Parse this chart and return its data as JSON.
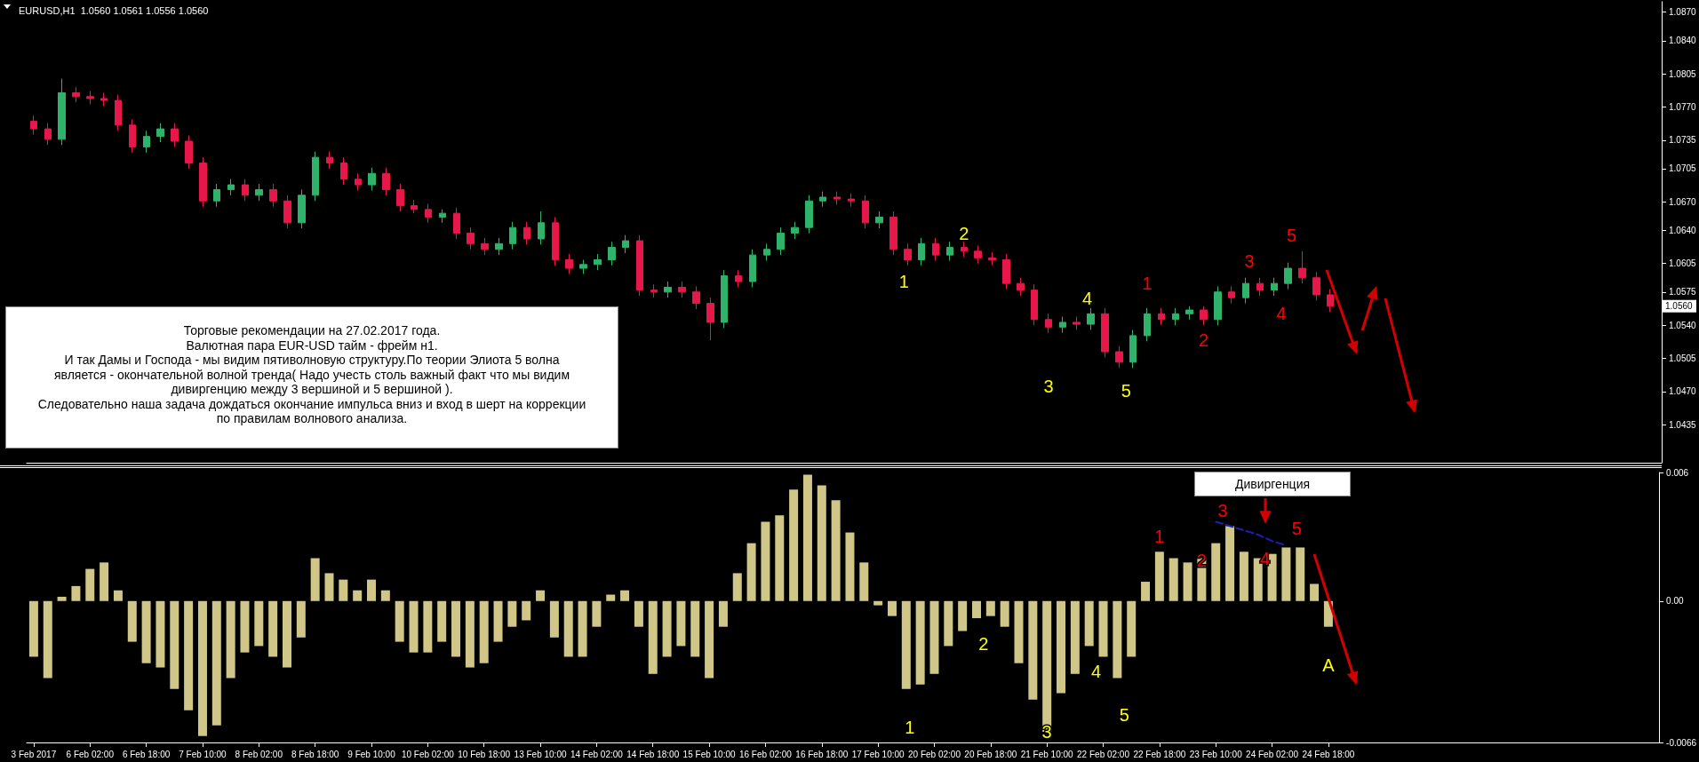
{
  "chart_data": [
    {
      "type": "candlestick",
      "title": "EURUSD,H1  1.0560 1.0561 1.0556 1.0560",
      "categories": [
        null,
        null,
        null,
        null,
        null,
        null,
        null,
        null,
        null,
        null,
        null,
        null,
        null,
        null,
        null,
        null,
        null,
        null,
        null,
        null,
        null,
        null,
        null,
        null,
        null,
        null,
        null,
        null,
        null,
        null,
        null,
        null,
        null,
        null,
        null,
        null,
        null,
        null,
        null,
        null,
        null,
        null,
        null,
        null,
        null,
        null,
        null,
        null,
        null,
        null,
        null,
        null,
        null,
        null,
        null,
        null,
        null,
        null,
        null,
        null,
        null,
        null,
        null,
        null,
        null,
        null,
        null,
        null,
        null,
        null,
        null,
        null,
        null,
        null,
        null,
        null,
        null,
        null,
        null,
        null,
        null,
        null,
        null,
        null,
        null,
        null,
        null,
        null,
        null,
        null,
        null,
        null,
        null,
        null,
        null,
        null,
        null,
        null,
        null,
        null,
        null,
        null,
        null,
        null,
        null,
        null,
        null,
        null,
        null,
        null,
        null,
        null,
        null,
        null,
        null,
        null
      ],
      "ohlc": [
        [
          1.0755,
          1.0761,
          1.0741,
          1.0747
        ],
        [
          1.0747,
          1.0753,
          1.073,
          1.0736
        ],
        [
          1.0736,
          1.08,
          1.073,
          1.0785
        ],
        [
          1.0785,
          1.0791,
          1.0775,
          1.0781
        ],
        [
          1.0781,
          1.0787,
          1.0773,
          1.0779
        ],
        [
          1.0779,
          1.0785,
          1.0771,
          1.0777
        ],
        [
          1.0777,
          1.0783,
          1.0745,
          1.0751
        ],
        [
          1.0751,
          1.0757,
          1.0722,
          1.0728
        ],
        [
          1.0728,
          1.0745,
          1.0722,
          1.0739
        ],
        [
          1.0739,
          1.0753,
          1.0733,
          1.0747
        ],
        [
          1.0747,
          1.0753,
          1.0728,
          1.0734
        ],
        [
          1.0734,
          1.074,
          1.0705,
          1.0711
        ],
        [
          1.0711,
          1.0717,
          1.0665,
          1.0671
        ],
        [
          1.0671,
          1.0689,
          1.0665,
          1.0683
        ],
        [
          1.0683,
          1.0694,
          1.0677,
          1.0688
        ],
        [
          1.0688,
          1.0694,
          1.0671,
          1.0677
        ],
        [
          1.0677,
          1.0689,
          1.0671,
          1.0683
        ],
        [
          1.0683,
          1.0689,
          1.0665,
          1.0671
        ],
        [
          1.0671,
          1.0677,
          1.0642,
          1.0648
        ],
        [
          1.0648,
          1.0683,
          1.0642,
          1.0677
        ],
        [
          1.0677,
          1.0723,
          1.0671,
          1.0717
        ],
        [
          1.0717,
          1.0723,
          1.0705,
          1.0711
        ],
        [
          1.0711,
          1.0717,
          1.0688,
          1.0694
        ],
        [
          1.0694,
          1.07,
          1.0682,
          1.0688
        ],
        [
          1.0688,
          1.0706,
          1.0682,
          1.07
        ],
        [
          1.07,
          1.0706,
          1.0677,
          1.0683
        ],
        [
          1.0683,
          1.0689,
          1.066,
          1.0666
        ],
        [
          1.0666,
          1.0672,
          1.0658,
          1.0662
        ],
        [
          1.0662,
          1.0668,
          1.0648,
          1.0654
        ],
        [
          1.0654,
          1.0662,
          1.0648,
          1.0658
        ],
        [
          1.0658,
          1.0664,
          1.0631,
          1.0637
        ],
        [
          1.0637,
          1.0643,
          1.062,
          1.0626
        ],
        [
          1.0626,
          1.0632,
          1.0614,
          1.062
        ],
        [
          1.062,
          1.0632,
          1.0614,
          1.0626
        ],
        [
          1.0626,
          1.0649,
          1.062,
          1.0643
        ],
        [
          1.0643,
          1.0649,
          1.0625,
          1.0631
        ],
        [
          1.0631,
          1.066,
          1.0625,
          1.0648
        ],
        [
          1.0648,
          1.0654,
          1.0603,
          1.0609
        ],
        [
          1.0609,
          1.0615,
          1.0594,
          1.06
        ],
        [
          1.06,
          1.0609,
          1.0594,
          1.0604
        ],
        [
          1.0604,
          1.0615,
          1.0598,
          1.0609
        ],
        [
          1.0609,
          1.0628,
          1.0603,
          1.0622
        ],
        [
          1.0622,
          1.0635,
          1.0616,
          1.0629
        ],
        [
          1.0629,
          1.0635,
          1.0571,
          1.0577
        ],
        [
          1.0577,
          1.0583,
          1.0569,
          1.0575
        ],
        [
          1.0575,
          1.0586,
          1.0569,
          1.058
        ],
        [
          1.058,
          1.0586,
          1.0569,
          1.0575
        ],
        [
          1.0575,
          1.0581,
          1.0557,
          1.0563
        ],
        [
          1.0563,
          1.0569,
          1.0524,
          1.0543
        ],
        [
          1.0543,
          1.0598,
          1.0537,
          1.0592
        ],
        [
          1.0592,
          1.0598,
          1.058,
          1.0586
        ],
        [
          1.0586,
          1.062,
          1.058,
          1.0614
        ],
        [
          1.0614,
          1.0626,
          1.0608,
          1.062
        ],
        [
          1.062,
          1.0643,
          1.0614,
          1.0637
        ],
        [
          1.0637,
          1.0649,
          1.0631,
          1.0643
        ],
        [
          1.0643,
          1.0677,
          1.0637,
          1.0671
        ],
        [
          1.0671,
          1.0681,
          1.0665,
          1.0675
        ],
        [
          1.0675,
          1.0681,
          1.0667,
          1.0673
        ],
        [
          1.0673,
          1.0679,
          1.0665,
          1.0671
        ],
        [
          1.0671,
          1.0677,
          1.0642,
          1.0648
        ],
        [
          1.0648,
          1.066,
          1.0642,
          1.0654
        ],
        [
          1.0654,
          1.066,
          1.0614,
          1.062
        ],
        [
          1.062,
          1.0626,
          1.0603,
          1.0609
        ],
        [
          1.0609,
          1.0632,
          1.0603,
          1.0626
        ],
        [
          1.0626,
          1.0632,
          1.0608,
          1.0614
        ],
        [
          1.0614,
          1.0628,
          1.0608,
          1.0622
        ],
        [
          1.0622,
          1.0628,
          1.0612,
          1.0618
        ],
        [
          1.0618,
          1.0624,
          1.0605,
          1.0611
        ],
        [
          1.0611,
          1.0617,
          1.0603,
          1.0609
        ],
        [
          1.0609,
          1.0615,
          1.0578,
          1.0584
        ],
        [
          1.0584,
          1.059,
          1.0571,
          1.0577
        ],
        [
          1.0577,
          1.0583,
          1.054,
          1.0546
        ],
        [
          1.0546,
          1.0552,
          1.0532,
          1.0538
        ],
        [
          1.0538,
          1.0549,
          1.0532,
          1.0543
        ],
        [
          1.0543,
          1.0549,
          1.0535,
          1.0541
        ],
        [
          1.0541,
          1.0558,
          1.0535,
          1.0552
        ],
        [
          1.0552,
          1.0558,
          1.0506,
          1.0512
        ],
        [
          1.0512,
          1.0518,
          1.0495,
          1.0501
        ],
        [
          1.0501,
          1.0535,
          1.0495,
          1.0529
        ],
        [
          1.0529,
          1.0558,
          1.0523,
          1.0552
        ],
        [
          1.0552,
          1.0558,
          1.054,
          1.0546
        ],
        [
          1.0546,
          1.0558,
          1.054,
          1.0552
        ],
        [
          1.0552,
          1.056,
          1.0546,
          1.0556
        ],
        [
          1.0556,
          1.056,
          1.054,
          1.0546
        ],
        [
          1.0546,
          1.0581,
          1.054,
          1.0575
        ],
        [
          1.0575,
          1.0581,
          1.0563,
          1.0569
        ],
        [
          1.0569,
          1.059,
          1.0563,
          1.0584
        ],
        [
          1.0584,
          1.059,
          1.0571,
          1.0577
        ],
        [
          1.0577,
          1.059,
          1.0571,
          1.0584
        ],
        [
          1.0584,
          1.0606,
          1.0578,
          1.06
        ],
        [
          1.06,
          1.0618,
          1.0584,
          1.059
        ],
        [
          1.059,
          1.0596,
          1.0566,
          1.0572
        ],
        [
          1.0572,
          1.0578,
          1.0554,
          1.056
        ],
        null,
        null,
        null,
        null,
        null,
        null,
        null,
        null,
        null,
        null,
        null,
        null,
        null,
        null,
        null,
        null,
        null,
        null,
        null,
        null,
        null,
        null,
        null
      ],
      "ylim": [
        1.0395,
        1.0881
      ],
      "yticks": [
        {
          "value": 1.087,
          "label": "1.0870"
        },
        {
          "value": 1.084,
          "label": "1.0840"
        },
        {
          "value": 1.0805,
          "label": "1.0805"
        },
        {
          "value": 1.077,
          "label": "1.0770"
        },
        {
          "value": 1.0735,
          "label": "1.0735"
        },
        {
          "value": 1.0705,
          "label": "1.0705"
        },
        {
          "value": 1.067,
          "label": "1.0670"
        },
        {
          "value": 1.064,
          "label": "1.0640"
        },
        {
          "value": 1.0605,
          "label": "1.0605"
        },
        {
          "value": 1.0575,
          "label": "1.0575"
        },
        {
          "value": 1.054,
          "label": "1.0540"
        },
        {
          "value": 1.0505,
          "label": "1.0505"
        },
        {
          "value": 1.047,
          "label": "1.0470"
        },
        {
          "value": 1.0435,
          "label": "1.0435"
        }
      ],
      "tick_labels": "y",
      "annotations": [
        "Торговые рекомендации на 27.02.2017 года.\nВалютная пара  EUR-USD   тайм - фрейм н1.\nИ так Дамы и Господа - мы видим пятиволновую структуру.По теории Элиота 5 волна\nявляется - окончательной волной тренда( Надо учесть столь важный факт что мы видим\nдивиргенцию между 3 вершиной и 5 вершиной ).\nСледовательно наша задача дождаться окончание импульса вниз и  вход в шерт на коррекции\nпо правилам волнового анализа.",
        {
          "text": "1.0560",
          "y": 1.056
        },
        "1",
        "2",
        "3",
        "4",
        "5",
        "1",
        "2",
        "3",
        "4",
        "5"
      ]
    },
    {
      "type": "bar",
      "categories": [
        "3 Feb 2017",
        null,
        null,
        null,
        "6 Feb 02:00",
        null,
        null,
        null,
        "6 Feb 18:00",
        null,
        null,
        null,
        "7 Feb 10:00",
        null,
        null,
        null,
        "8 Feb 02:00",
        null,
        null,
        null,
        "8 Feb 18:00",
        null,
        null,
        null,
        "9 Feb 10:00",
        null,
        null,
        null,
        "10 Feb 02:00",
        null,
        null,
        null,
        "10 Feb 18:00",
        null,
        null,
        null,
        "13 Feb 10:00",
        null,
        null,
        null,
        "14 Feb 02:00",
        null,
        null,
        null,
        "14 Feb 18:00",
        null,
        null,
        null,
        "15 Feb 10:00",
        null,
        null,
        null,
        "16 Feb 02:00",
        null,
        null,
        null,
        "16 Feb 18:00",
        null,
        null,
        null,
        "17 Feb 10:00",
        null,
        null,
        null,
        "20 Feb 02:00",
        null,
        null,
        null,
        "20 Feb 18:00",
        null,
        null,
        null,
        "21 Feb 10:00",
        null,
        null,
        null,
        "22 Feb 02:00",
        null,
        null,
        null,
        "22 Feb 18:00",
        null,
        null,
        null,
        "23 Feb 10:00",
        null,
        null,
        null,
        "24 Feb 02:00",
        null,
        null,
        null,
        "24 Feb 18:00",
        null,
        null,
        null,
        null,
        null,
        null,
        null,
        null,
        null,
        null,
        null,
        null,
        null,
        null,
        null,
        null,
        null,
        null,
        null,
        null,
        null,
        null,
        null
      ],
      "series": [
        {
          "color": "#cfc688",
          "values": [
            -0.0026,
            -0.0036,
            0.0002,
            0.0007,
            0.0015,
            0.0018,
            0.0005,
            -0.0019,
            -0.0029,
            -0.0031,
            -0.0041,
            -0.0051,
            -0.0063,
            -0.0058,
            -0.0036,
            -0.0024,
            -0.0021,
            -0.0026,
            -0.0031,
            -0.0017,
            0.002,
            0.0013,
            0.001,
            0.0005,
            0.001,
            0.0005,
            -0.0019,
            -0.0024,
            -0.0024,
            -0.0019,
            -0.0026,
            -0.0031,
            -0.0029,
            -0.0019,
            -0.0012,
            -0.0009,
            0.0005,
            -0.0017,
            -0.0026,
            -0.0026,
            -0.0012,
            0.0003,
            0.0005,
            -0.0012,
            -0.0034,
            -0.0026,
            -0.0021,
            -0.0026,
            -0.0036,
            -0.0012,
            0.0013,
            0.0027,
            0.0037,
            0.004,
            0.0052,
            0.0059,
            0.0054,
            0.0047,
            0.0032,
            0.0018,
            -0.0002,
            -0.0007,
            -0.0041,
            -0.0039,
            -0.0034,
            -0.0021,
            -0.0014,
            -0.0008,
            -0.0007,
            -0.0012,
            -0.0029,
            -0.0046,
            -0.0061,
            -0.0043,
            -0.0034,
            -0.0021,
            -0.0026,
            -0.0036,
            -0.0026,
            0.0009,
            0.0023,
            0.002,
            0.0018,
            0.002,
            0.0027,
            0.0035,
            0.0023,
            0.002,
            0.0022,
            0.0025,
            0.0025,
            0.0008,
            -0.0012,
            null,
            null,
            null,
            null,
            null,
            null,
            null,
            null,
            null,
            null,
            null,
            null,
            null,
            null,
            null,
            null,
            null,
            null,
            null,
            null,
            null,
            null,
            null
          ]
        },
        {
          "type": "line",
          "color": "#1e1eb4",
          "line_style": "dashed",
          "values": [
            null,
            null,
            null,
            null,
            null,
            null,
            null,
            null,
            null,
            null,
            null,
            null,
            null,
            null,
            null,
            null,
            null,
            null,
            null,
            null,
            null,
            null,
            null,
            null,
            null,
            null,
            null,
            null,
            null,
            null,
            null,
            null,
            null,
            null,
            null,
            null,
            null,
            null,
            null,
            null,
            null,
            null,
            null,
            null,
            null,
            null,
            null,
            null,
            null,
            null,
            null,
            null,
            null,
            null,
            null,
            null,
            null,
            null,
            null,
            null,
            null,
            null,
            null,
            null,
            null,
            null,
            null,
            null,
            null,
            null,
            null,
            null,
            null,
            null,
            null,
            null,
            null,
            null,
            null,
            null,
            null,
            null,
            null,
            null,
            0.0037,
            0.0035,
            0.0033,
            0.0031,
            0.0028,
            0.0026,
            null,
            null,
            null,
            null,
            null,
            null,
            null,
            null,
            null,
            null,
            null,
            null,
            null,
            null,
            null,
            null,
            null,
            null,
            null,
            null,
            null,
            null,
            null,
            null,
            null,
            null
          ]
        }
      ],
      "ylim": [
        -0.0066,
        0.006
      ],
      "yticks": [
        0.006,
        {
          "value": 0,
          "label": "0.00"
        },
        -0.0066
      ],
      "annotations": [
        "Дивиргенция",
        "1",
        "2",
        "3",
        "4",
        "5",
        "1",
        "2",
        "3",
        "4",
        "5",
        "A"
      ]
    }
  ]
}
